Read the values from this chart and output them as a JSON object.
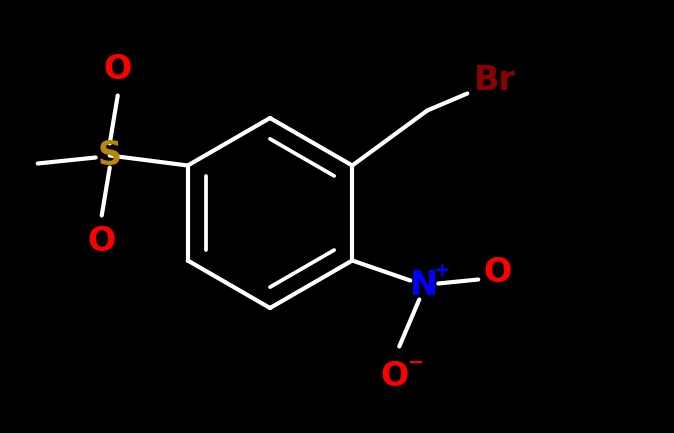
{
  "background_color": "#000000",
  "bond_color": "#ffffff",
  "bond_width": 3.0,
  "atom_colors": {
    "O": "#ff0000",
    "S": "#b8860b",
    "N": "#0000ff",
    "Br": "#8b0000",
    "C": "#ffffff"
  },
  "figsize": [
    6.74,
    4.33
  ],
  "dpi": 100
}
